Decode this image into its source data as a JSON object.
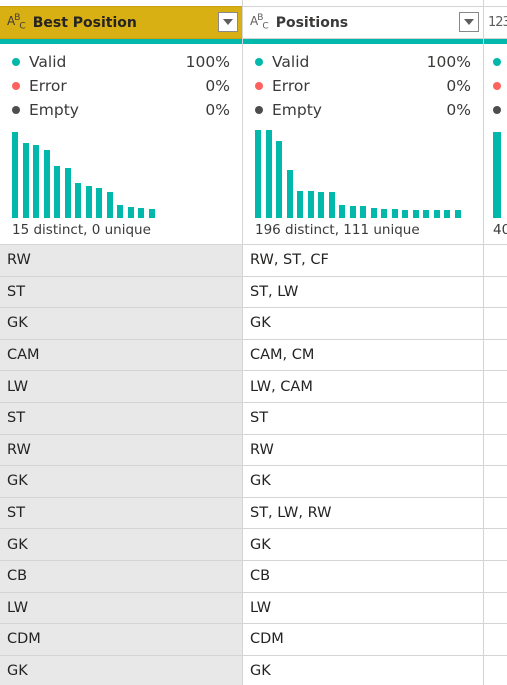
{
  "colors": {
    "valid": "#01b8aa",
    "error": "#fd625e",
    "empty": "#4d4d4d",
    "accent_header": "#d9b013"
  },
  "columns": [
    {
      "type_icon": "ABC",
      "name": "Best Position",
      "stats": {
        "valid": {
          "label": "Valid",
          "value": "100%"
        },
        "error": {
          "label": "Error",
          "value": "0%"
        },
        "empty": {
          "label": "Empty",
          "value": "0%"
        }
      },
      "histogram": [
        0.98,
        0.85,
        0.83,
        0.77,
        0.59,
        0.57,
        0.4,
        0.36,
        0.34,
        0.29,
        0.15,
        0.13,
        0.11,
        0.1
      ],
      "distinct_text": "15 distinct, 0 unique",
      "rows": [
        "RW",
        "ST",
        "GK",
        "CAM",
        "LW",
        "ST",
        "RW",
        "GK",
        "ST",
        "GK",
        "CB",
        "LW",
        "CDM",
        "GK"
      ]
    },
    {
      "type_icon": "ABC",
      "name": "Positions",
      "stats": {
        "valid": {
          "label": "Valid",
          "value": "100%"
        },
        "error": {
          "label": "Error",
          "value": "0%"
        },
        "empty": {
          "label": "Empty",
          "value": "0%"
        }
      },
      "histogram": [
        1.0,
        1.0,
        0.88,
        0.54,
        0.31,
        0.31,
        0.29,
        0.29,
        0.15,
        0.14,
        0.14,
        0.11,
        0.1,
        0.1,
        0.09,
        0.09,
        0.09,
        0.09,
        0.09,
        0.09
      ],
      "distinct_text": "196 distinct, 111 unique",
      "rows": [
        "RW, ST, CF",
        "ST, LW",
        "GK",
        "CAM, CM",
        "LW, CAM",
        "ST",
        "RW",
        "GK",
        "ST, LW, RW",
        "GK",
        "CB",
        "LW",
        "CDM",
        "GK"
      ]
    },
    {
      "type_icon": "123",
      "distinct_text": "40"
    }
  ]
}
